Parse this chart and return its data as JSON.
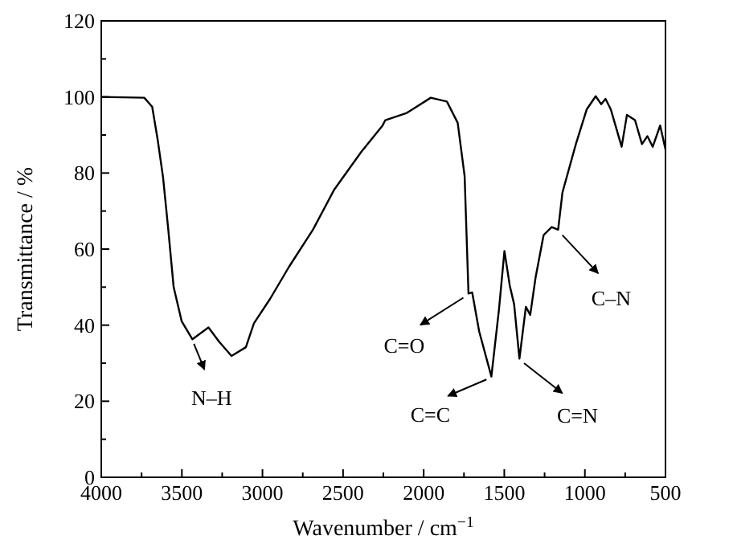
{
  "chart_data": {
    "type": "line",
    "xlabel": "Wavenumber / cm$^{−1}$",
    "ylabel": "Transmittance / %",
    "xlim": [
      4000,
      500
    ],
    "ylim": [
      0,
      120
    ],
    "xticks": [
      4000,
      3500,
      3000,
      2500,
      2000,
      1500,
      1000,
      500
    ],
    "yticks": [
      0,
      20,
      40,
      60,
      80,
      100,
      120
    ],
    "grid": false,
    "line_style": "solid",
    "series": [
      {
        "color": "#000000",
        "x": [
          4000,
          3733,
          3684,
          3651,
          3617,
          3584,
          3551,
          3501,
          3435,
          3335,
          3268,
          3192,
          3103,
          3053,
          2953,
          2836,
          2687,
          2554,
          2388,
          2255,
          2238,
          2105,
          1956,
          1856,
          1789,
          1746,
          1722,
          1699,
          1656,
          1580,
          1533,
          1499,
          1466,
          1439,
          1406,
          1366,
          1339,
          1306,
          1256,
          1206,
          1166,
          1139,
          1056,
          989,
          933,
          899,
          872,
          839,
          772,
          739,
          689,
          646,
          612,
          579,
          533,
          500
        ],
        "values": [
          100,
          99.8,
          97.4,
          89,
          79,
          65,
          50,
          41,
          36.3,
          39.4,
          35.6,
          31.9,
          34.2,
          40.5,
          46.9,
          55.3,
          65.1,
          75.7,
          85.5,
          92.5,
          93.9,
          95.8,
          99.8,
          98.8,
          93.2,
          79.2,
          48.3,
          48.6,
          38.4,
          26.5,
          44.1,
          59.5,
          50.4,
          45.5,
          31.2,
          44.8,
          42.7,
          52.5,
          63.7,
          65.8,
          65.1,
          74.9,
          87.6,
          96.7,
          100.2,
          98.1,
          99.5,
          96.7,
          86.9,
          95.3,
          93.9,
          87.6,
          89.7,
          86.9,
          92.5,
          86.2
        ]
      }
    ],
    "annotations": [
      {
        "text": "N–H",
        "x": 3435,
        "y": 36.3
      },
      {
        "text": "C=O",
        "x": 1722,
        "y": 48.3
      },
      {
        "text": "C=C",
        "x": 1580,
        "y": 26.5
      },
      {
        "text": "C=N",
        "x": 1406,
        "y": 31.2
      },
      {
        "text": "C–N",
        "x": 1166,
        "y": 65.1
      }
    ]
  }
}
